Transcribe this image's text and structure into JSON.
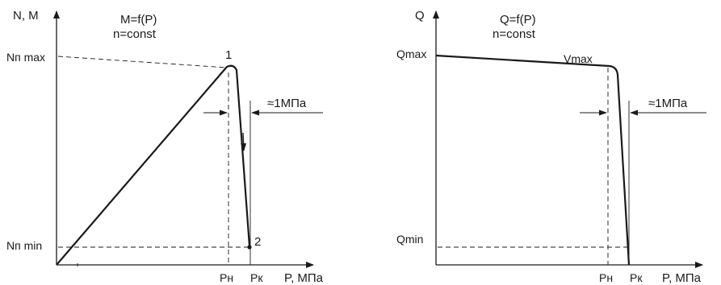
{
  "left": {
    "y_axis_label": "N, M",
    "formula": "M=f(P)",
    "condition": "n=const",
    "nmax_label": "Nп max",
    "nmin_label": "Nп min",
    "point1": "1",
    "point2": "2",
    "delta_label": "≈1МПа",
    "pn": "Pн",
    "pk": "Pк",
    "x_axis_label": "P, МПа"
  },
  "right": {
    "y_axis_label": "Q",
    "formula": "Q=f(P)",
    "condition": "n=const",
    "qmax_label": "Qmax",
    "qmin_label": "Qmin",
    "vmax_label": "Vmax",
    "delta_label": "≈1МПа",
    "pn": "Pн",
    "pk": "Pк",
    "x_axis_label": "P, МПа"
  }
}
